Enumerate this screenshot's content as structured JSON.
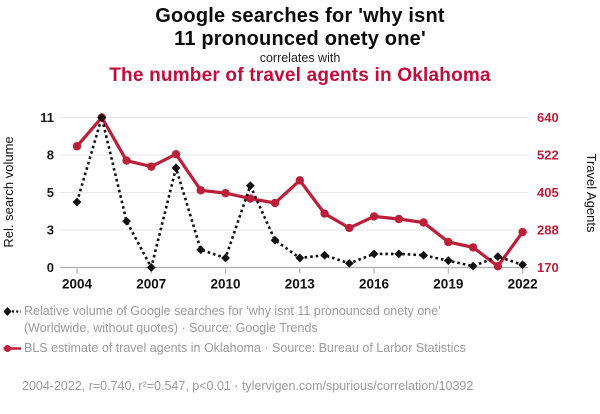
{
  "header": {
    "title_line1": "Google searches for 'why isnt",
    "title_line2": "11 pronounced onety one'",
    "connector": "correlates with",
    "subtitle": "The number of travel agents in Oklahoma",
    "title_color": "#0b0b0b",
    "subtitle_color": "#c10d3b"
  },
  "chart_data": {
    "type": "line",
    "x": [
      2004,
      2005,
      2006,
      2007,
      2008,
      2009,
      2010,
      2011,
      2012,
      2013,
      2014,
      2015,
      2016,
      2017,
      2018,
      2019,
      2020,
      2021,
      2022
    ],
    "x_range": [
      2004,
      2022
    ],
    "x_ticks": [
      2004,
      2007,
      2010,
      2013,
      2016,
      2019,
      2022
    ],
    "grid": true,
    "legend_position": "bottom",
    "left_axis": {
      "label": "Rel. search volume",
      "ticks": [
        0,
        3,
        5,
        8,
        11
      ],
      "range": [
        0,
        11
      ],
      "color": "#1a1a1a"
    },
    "right_axis": {
      "label": "Travel Agents",
      "ticks": [
        170,
        288,
        405,
        522,
        640
      ],
      "range": [
        170,
        640
      ],
      "color": "#bb1f3a"
    },
    "series": [
      {
        "id": "search-series",
        "name": "Relative volume of Google searches for 'why isnt 11 pronounced onety one'",
        "axis": "left",
        "color": "#111111",
        "line_style": "dashed",
        "marker": "diamond",
        "values": [
          4.8,
          11,
          3.4,
          0,
          7.3,
          1.3,
          0.7,
          6.0,
          2.0,
          0.7,
          0.9,
          0.3,
          1.0,
          1.0,
          0.9,
          0.5,
          0.1,
          0.8,
          0.2
        ]
      },
      {
        "id": "agents-series",
        "name": "BLS estimate of travel agents in Oklahoma",
        "axis": "right",
        "color": "#bb1f3a",
        "line_style": "solid",
        "marker": "circle",
        "values": [
          550,
          640,
          505,
          486,
          525,
          412,
          403,
          386,
          372,
          443,
          339,
          294,
          330,
          322,
          311,
          250,
          233,
          174,
          281
        ]
      }
    ]
  },
  "legend": {
    "text_color": "#9b9b9b",
    "entries": [
      {
        "text": "Relative volume of Google searches for 'why isnt 11 pronounced onety one' (Worldwide, without quotes) · Source: Google Trends"
      },
      {
        "text": "BLS estimate of travel agents in Oklahoma · Source: Bureau of Larbor Statistics"
      }
    ]
  },
  "footer": {
    "text": "2004-2022, r=0.740, r²=0.547, p<0.01 · tylervigen.com/spurious/correlation/10392"
  }
}
